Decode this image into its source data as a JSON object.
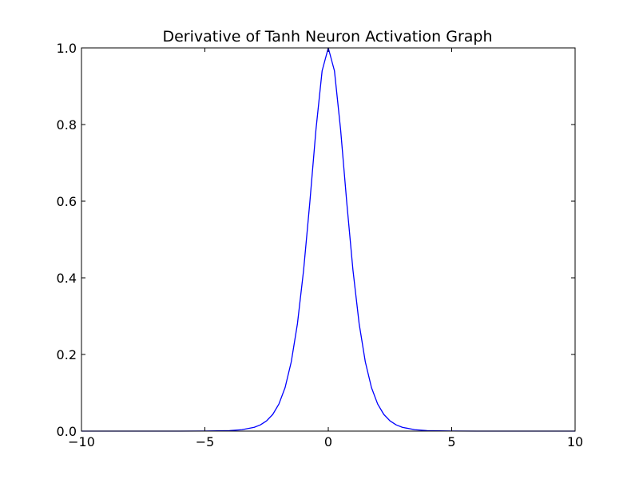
{
  "chart_data": {
    "type": "line",
    "title": "Derivative of Tanh Neuron Activation Graph",
    "xlabel": "",
    "ylabel": "",
    "xlim": [
      -10,
      10
    ],
    "ylim": [
      0,
      1
    ],
    "grid": false,
    "x_ticks": [
      -10,
      -5,
      0,
      5,
      10
    ],
    "x_tick_labels": [
      "−10",
      "−5",
      "0",
      "5",
      "10"
    ],
    "y_ticks": [
      0,
      0.2,
      0.4,
      0.6,
      0.8,
      1.0
    ],
    "y_tick_labels": [
      "0.0",
      "0.2",
      "0.4",
      "0.6",
      "0.8",
      "1.0"
    ],
    "series": [
      {
        "color": "#0000ff",
        "x": [
          -10,
          -8,
          -6,
          -5,
          -4,
          -3.5,
          -3,
          -2.75,
          -2.5,
          -2.25,
          -2,
          -1.75,
          -1.5,
          -1.25,
          -1,
          -0.75,
          -0.5,
          -0.25,
          0,
          0.25,
          0.5,
          0.75,
          1,
          1.25,
          1.5,
          1.75,
          2,
          2.25,
          2.5,
          2.75,
          3,
          3.5,
          4,
          5,
          6,
          8,
          10
        ],
        "y": [
          0.0,
          0.0,
          0.0,
          0.0002,
          0.0013,
          0.0036,
          0.0099,
          0.0163,
          0.0266,
          0.0435,
          0.0707,
          0.1135,
          0.1807,
          0.2802,
          0.42,
          0.5954,
          0.7864,
          0.9401,
          1.0,
          0.9401,
          0.7864,
          0.5954,
          0.42,
          0.2802,
          0.1807,
          0.1135,
          0.0707,
          0.0435,
          0.0266,
          0.0163,
          0.0099,
          0.0036,
          0.0013,
          0.0002,
          0.0,
          0.0,
          0.0
        ]
      }
    ]
  }
}
